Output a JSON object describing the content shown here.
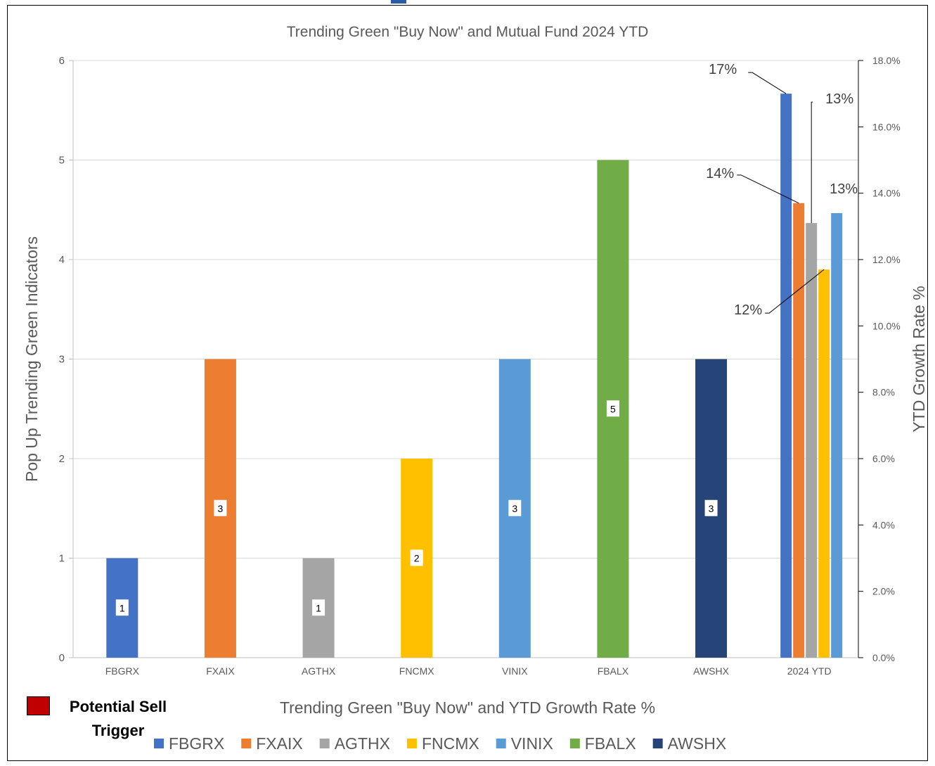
{
  "chart_data": {
    "type": "bar",
    "title": "Trending Green \"Buy Now\" and Mutual Fund 2024 YTD",
    "xlabel": "Trending Green \"Buy Now\" and YTD Growth Rate %",
    "ylabel": "Pop Up Trending Green Indicators",
    "y2label": "YTD Growth Rate %",
    "categories": [
      "FBGRX",
      "FXAIX",
      "AGTHX",
      "FNCMX",
      "VINIX",
      "FBALX",
      "AWSHX",
      "2024 YTD"
    ],
    "ylim": [
      0,
      6
    ],
    "y2lim": [
      0,
      18
    ],
    "yticks": [
      "0",
      "1",
      "2",
      "3",
      "4",
      "5",
      "6"
    ],
    "y2ticks": [
      "0.0%",
      "2.0%",
      "4.0%",
      "6.0%",
      "8.0%",
      "10.0%",
      "12.0%",
      "14.0%",
      "16.0%",
      "18.0%"
    ],
    "grid": true,
    "legend_position": "bottom",
    "series": [
      {
        "name": "FBGRX",
        "color": "#4472c4",
        "indicator": 1,
        "indicator_label": "1",
        "ytd": 17.0,
        "ytd_label": "17%"
      },
      {
        "name": "FXAIX",
        "color": "#ed7d31",
        "indicator": 3,
        "indicator_label": "3",
        "ytd": 13.7,
        "ytd_label": "14%"
      },
      {
        "name": "AGTHX",
        "color": "#a5a5a5",
        "indicator": 1,
        "indicator_label": "1",
        "ytd": 13.1,
        "ytd_label": "13%"
      },
      {
        "name": "FNCMX",
        "color": "#ffc000",
        "indicator": 2,
        "indicator_label": "2",
        "ytd": 11.7,
        "ytd_label": "12%"
      },
      {
        "name": "VINIX",
        "color": "#5b9bd5",
        "indicator": 3,
        "indicator_label": "3",
        "ytd": 13.4,
        "ytd_label": "13%"
      },
      {
        "name": "FBALX",
        "color": "#70ad47",
        "indicator": 5,
        "indicator_label": "5",
        "ytd": null,
        "ytd_label": ""
      },
      {
        "name": "AWSHX",
        "color": "#264478",
        "indicator": 3,
        "indicator_label": "3",
        "ytd": null,
        "ytd_label": ""
      }
    ]
  },
  "sell_legend": {
    "label": "Potential Sell\nTrigger",
    "color": "#c00000"
  }
}
